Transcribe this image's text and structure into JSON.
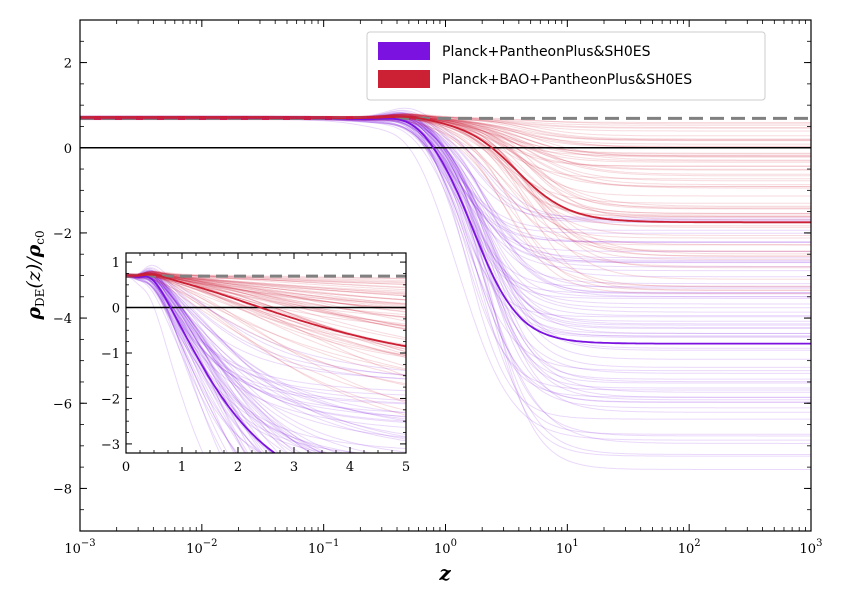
{
  "chart_data": [
    {
      "type": "line",
      "x_scale": "log",
      "xlim": [
        0.001,
        1000
      ],
      "ylim": [
        -9,
        3
      ],
      "xlabel": "z",
      "ylabel": "ρDE(z)/ρc0",
      "xticks": [
        {
          "value": 0.001,
          "base": "10",
          "exp": "−3"
        },
        {
          "value": 0.01,
          "base": "10",
          "exp": "−2"
        },
        {
          "value": 0.1,
          "base": "10",
          "exp": "−1"
        },
        {
          "value": 1,
          "base": "10",
          "exp": "0"
        },
        {
          "value": 10,
          "base": "10",
          "exp": "1"
        },
        {
          "value": 100,
          "base": "10",
          "exp": "2"
        },
        {
          "value": 1000,
          "base": "10",
          "exp": "3"
        }
      ],
      "yticks": [
        {
          "value": 2,
          "label": "2"
        },
        {
          "value": 0,
          "label": "0"
        },
        {
          "value": -2,
          "label": "−2"
        },
        {
          "value": -4,
          "label": "−4"
        },
        {
          "value": -6,
          "label": "−6"
        },
        {
          "value": -8,
          "label": "−8"
        }
      ],
      "reference_lines": [
        {
          "name": "cosmological-constant",
          "y": 0.69,
          "style": "dashed",
          "color": "#808080"
        },
        {
          "name": "zero",
          "y": 0,
          "style": "solid",
          "color": "#000000"
        }
      ],
      "series": [
        {
          "name": "Planck+PantheonPlus&SH0ES",
          "color": "#7b12e0",
          "z0": 0.7,
          "zc": 1.7,
          "slope": 2.3,
          "bump": 0.18,
          "final": -4.6,
          "final_spread": [
            -7.6,
            -1.6
          ]
        },
        {
          "name": "Planck+BAO+PantheonPlus&SH0ES",
          "color": "#cc2035",
          "z0": 0.7,
          "zc": 3.8,
          "slope": 2.0,
          "bump": 0.06,
          "final": -1.75,
          "final_spread": [
            -3.5,
            0.6
          ]
        }
      ],
      "legend": {
        "position": "top-right",
        "entries": [
          "Planck+PantheonPlus&SH0ES",
          "Planck+BAO+PantheonPlus&SH0ES"
        ]
      }
    },
    {
      "type": "line",
      "x_scale": "linear",
      "xlim": [
        0,
        5
      ],
      "ylim": [
        -3.2,
        1.2
      ],
      "position": "inset-lower-left",
      "xticks": [
        {
          "value": 0,
          "label": "0"
        },
        {
          "value": 1,
          "label": "1"
        },
        {
          "value": 2,
          "label": "2"
        },
        {
          "value": 3,
          "label": "3"
        },
        {
          "value": 4,
          "label": "4"
        },
        {
          "value": 5,
          "label": "5"
        }
      ],
      "yticks": [
        {
          "value": 1,
          "label": "1"
        },
        {
          "value": 0,
          "label": "0"
        },
        {
          "value": -1,
          "label": "−1"
        },
        {
          "value": -2,
          "label": "−2"
        },
        {
          "value": -3,
          "label": "−3"
        }
      ]
    }
  ]
}
